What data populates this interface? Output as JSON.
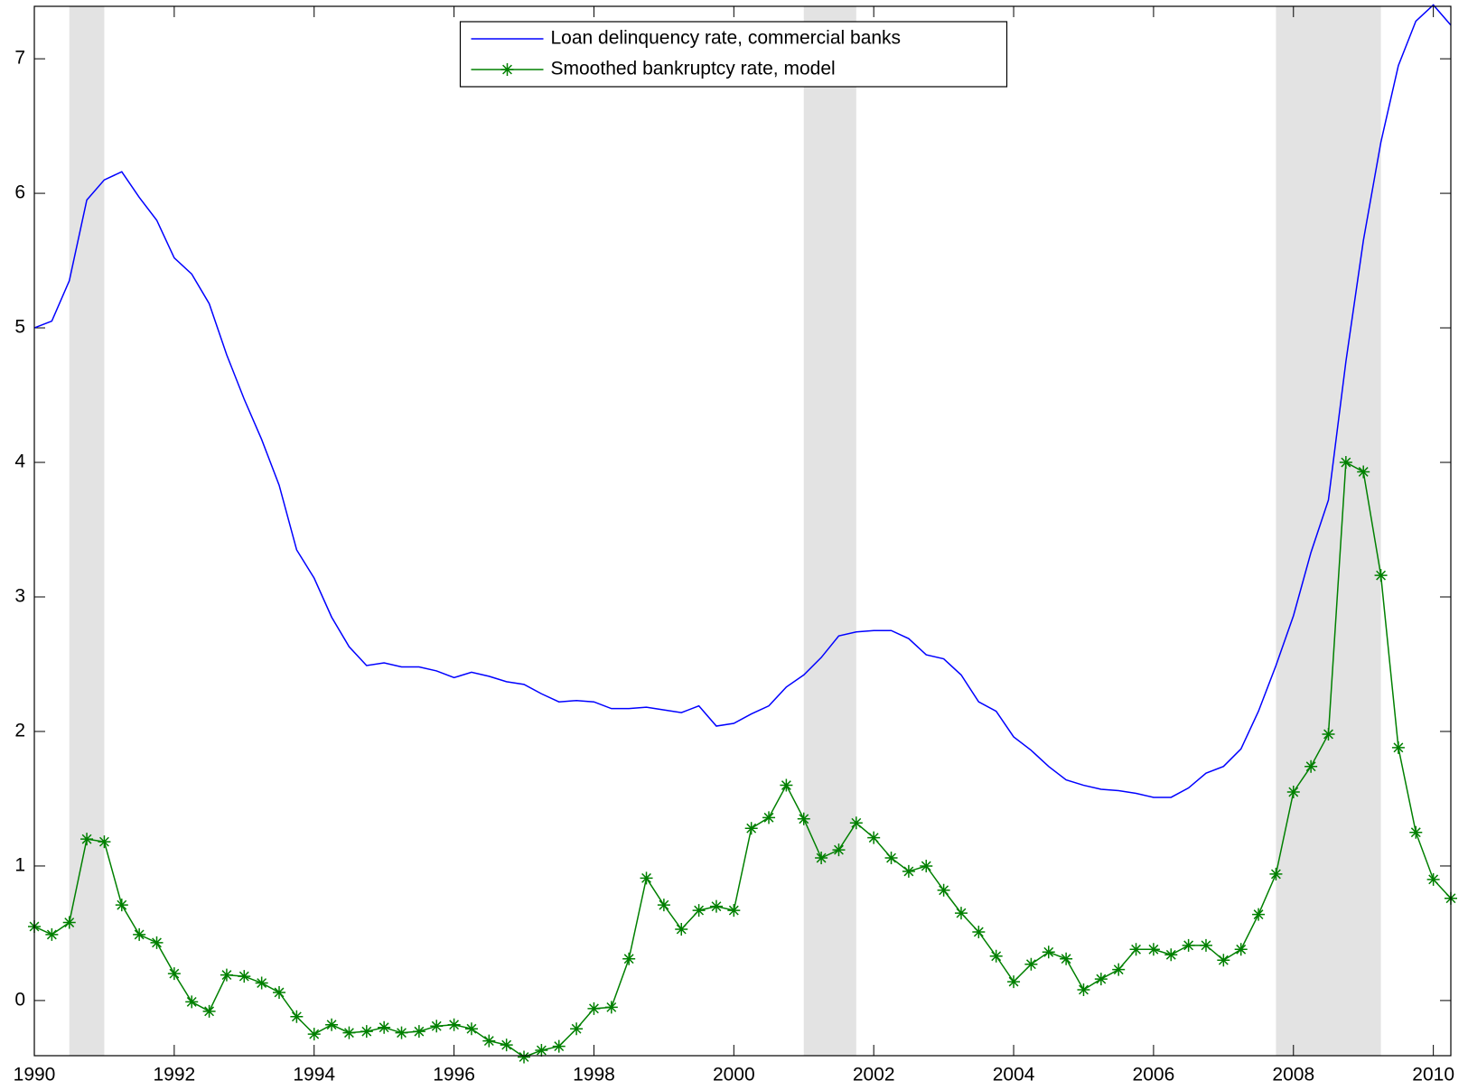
{
  "chart_data": {
    "type": "line",
    "x": [
      1990,
      1990.25,
      1990.5,
      1990.75,
      1991,
      1991.25,
      1991.5,
      1991.75,
      1992,
      1992.25,
      1992.5,
      1992.75,
      1993,
      1993.25,
      1993.5,
      1993.75,
      1994,
      1994.25,
      1994.5,
      1994.75,
      1995,
      1995.25,
      1995.5,
      1995.75,
      1996,
      1996.25,
      1996.5,
      1996.75,
      1997,
      1997.25,
      1997.5,
      1997.75,
      1998,
      1998.25,
      1998.5,
      1998.75,
      1999,
      1999.25,
      1999.5,
      1999.75,
      2000,
      2000.25,
      2000.5,
      2000.75,
      2001,
      2001.25,
      2001.5,
      2001.75,
      2002,
      2002.25,
      2002.5,
      2002.75,
      2003,
      2003.25,
      2003.5,
      2003.75,
      2004,
      2004.25,
      2004.5,
      2004.75,
      2005,
      2005.25,
      2005.5,
      2005.75,
      2006,
      2006.25,
      2006.5,
      2006.75,
      2007,
      2007.25,
      2007.5,
      2007.75,
      2008,
      2008.25,
      2008.5,
      2008.75,
      2009,
      2009.25,
      2009.5,
      2009.75,
      2010,
      2010.25
    ],
    "series": [
      {
        "name": "Loan delinquency rate, commercial banks",
        "color": "#0000ff",
        "marker": "none",
        "values": [
          5.0,
          5.05,
          5.35,
          5.95,
          6.1,
          6.16,
          5.97,
          5.8,
          5.52,
          5.4,
          5.18,
          4.8,
          4.47,
          4.17,
          3.83,
          3.35,
          3.14,
          2.85,
          2.63,
          2.49,
          2.51,
          2.48,
          2.48,
          2.45,
          2.4,
          2.44,
          2.41,
          2.37,
          2.35,
          2.28,
          2.22,
          2.23,
          2.22,
          2.17,
          2.17,
          2.18,
          2.16,
          2.14,
          2.19,
          2.04,
          2.06,
          2.13,
          2.19,
          2.33,
          2.42,
          2.55,
          2.71,
          2.74,
          2.75,
          2.75,
          2.69,
          2.57,
          2.54,
          2.42,
          2.22,
          2.15,
          1.96,
          1.86,
          1.74,
          1.64,
          1.6,
          1.57,
          1.56,
          1.54,
          1.51,
          1.51,
          1.58,
          1.69,
          1.74,
          1.87,
          2.15,
          2.49,
          2.86,
          3.33,
          3.72,
          4.75,
          5.65,
          6.38,
          6.95,
          7.28,
          7.4,
          7.25
        ]
      },
      {
        "name": "Smoothed bankruptcy rate, model",
        "color": "#008000",
        "marker": "star",
        "values": [
          0.55,
          0.49,
          0.58,
          1.2,
          1.18,
          0.71,
          0.49,
          0.43,
          0.2,
          -0.01,
          -0.08,
          0.19,
          0.18,
          0.13,
          0.06,
          -0.12,
          -0.25,
          -0.18,
          -0.24,
          -0.23,
          -0.2,
          -0.24,
          -0.23,
          -0.19,
          -0.18,
          -0.21,
          -0.3,
          -0.33,
          -0.42,
          -0.37,
          -0.34,
          -0.21,
          -0.06,
          -0.05,
          0.31,
          0.91,
          0.71,
          0.53,
          0.67,
          0.7,
          0.67,
          1.28,
          1.36,
          1.6,
          1.35,
          1.06,
          1.12,
          1.32,
          1.21,
          1.06,
          0.96,
          1.0,
          0.82,
          0.65,
          0.51,
          0.33,
          0.14,
          0.27,
          0.36,
          0.31,
          0.08,
          0.16,
          0.23,
          0.38,
          0.38,
          0.34,
          0.41,
          0.41,
          0.3,
          0.38,
          0.64,
          0.94,
          1.55,
          1.74,
          1.98,
          4.0,
          3.93,
          3.16,
          1.88,
          1.25,
          0.9,
          0.76
        ]
      }
    ],
    "shaded_regions": [
      [
        1990.5,
        1991
      ],
      [
        2001,
        2001.75
      ],
      [
        2007.75,
        2009.25
      ]
    ],
    "shade_color": "#e3e3e3",
    "xlim": [
      1990,
      2010.25
    ],
    "ylim": [
      -0.41,
      7.39
    ],
    "xticks": [
      1990,
      1992,
      1994,
      1996,
      1998,
      2000,
      2002,
      2004,
      2006,
      2008,
      2010
    ],
    "yticks": [
      0,
      1,
      2,
      3,
      4,
      5,
      6,
      7
    ],
    "grid": false,
    "legend": "north"
  }
}
